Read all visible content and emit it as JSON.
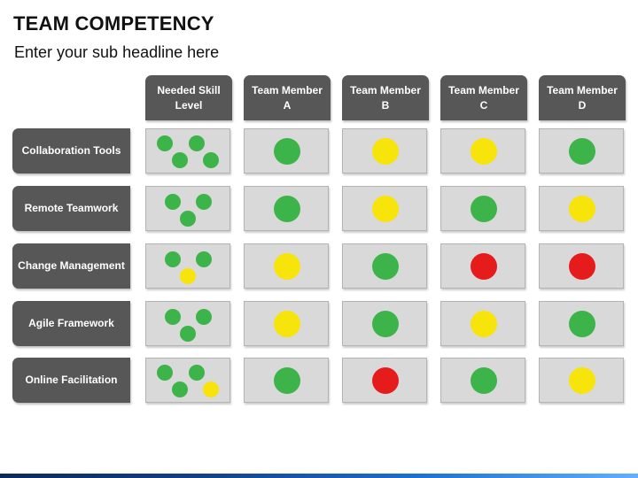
{
  "title": "TEAM COMPETENCY",
  "subtitle": "Enter your sub headline here",
  "colors": {
    "green": "#3db44a",
    "yellow": "#f7e40a",
    "red": "#e61c1c"
  },
  "columns": [
    "Needed Skill Level",
    "Team Member A",
    "Team Member B",
    "Team Member C",
    "Team Member D"
  ],
  "rows": [
    {
      "label": "Collaboration Tools",
      "needed": [
        "green",
        "green",
        "green",
        "green"
      ],
      "members": [
        "green",
        "yellow",
        "yellow",
        "green"
      ]
    },
    {
      "label": "Remote Teamwork",
      "needed": [
        "green",
        "green",
        "green"
      ],
      "members": [
        "green",
        "yellow",
        "green",
        "yellow"
      ]
    },
    {
      "label": "Change Management",
      "needed": [
        "green",
        "green",
        "yellow"
      ],
      "members": [
        "yellow",
        "green",
        "red",
        "red"
      ]
    },
    {
      "label": "Agile Framework",
      "needed": [
        "green",
        "green",
        "green"
      ],
      "members": [
        "yellow",
        "green",
        "yellow",
        "green"
      ]
    },
    {
      "label": "Online Facilitation",
      "needed": [
        "green",
        "green",
        "green",
        "yellow"
      ],
      "members": [
        "green",
        "red",
        "green",
        "yellow"
      ]
    }
  ]
}
